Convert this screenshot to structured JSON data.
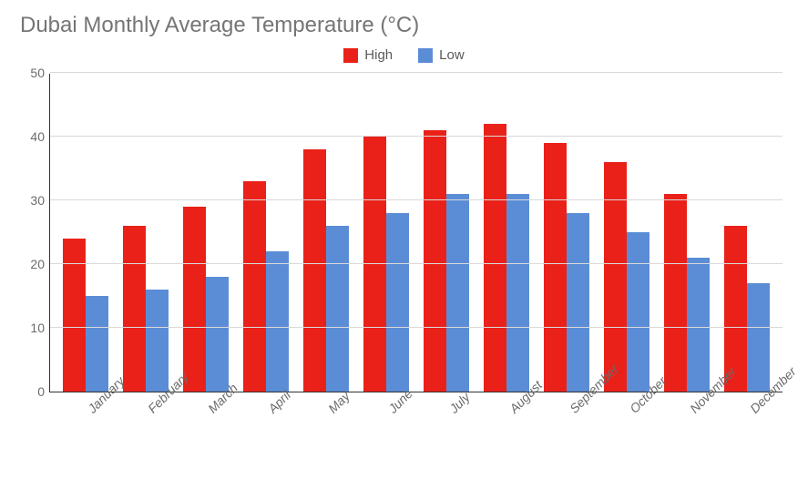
{
  "chart": {
    "type": "bar",
    "title": "Dubai Monthly Average Temperature (°C)",
    "title_fontsize": 24,
    "title_color": "#757575",
    "background_color": "#ffffff",
    "grid_color": "#d9d9d9",
    "axis_color": "#333333",
    "label_color": "#6b6b6b",
    "label_fontsize": 14,
    "ylim": [
      0,
      50
    ],
    "ytick_step": 10,
    "yticks": [
      0,
      10,
      20,
      30,
      40,
      50
    ],
    "categories": [
      "January",
      "February",
      "March",
      "April",
      "May",
      "June",
      "July",
      "August",
      "September",
      "October",
      "November",
      "December"
    ],
    "series": [
      {
        "name": "High",
        "color": "#ea2119",
        "values": [
          24,
          26,
          29,
          33,
          38,
          40,
          41,
          42,
          39,
          36,
          31,
          26
        ]
      },
      {
        "name": "Low",
        "color": "#5b8dd6",
        "values": [
          15,
          16,
          18,
          22,
          26,
          28,
          31,
          31,
          28,
          25,
          21,
          17
        ]
      }
    ],
    "legend": {
      "position": "top",
      "fontsize": 15
    },
    "bar_group_width": 0.7
  }
}
